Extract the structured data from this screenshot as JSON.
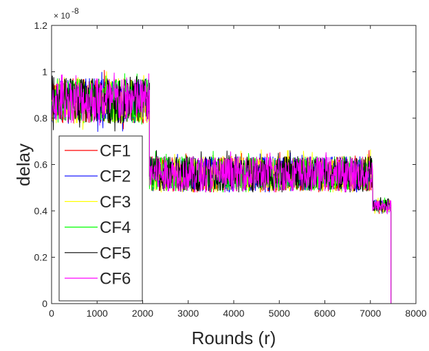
{
  "chart_data": {
    "type": "line",
    "title": "",
    "xlabel": "Rounds (r)",
    "ylabel": "delay",
    "xlim": [
      0,
      8000
    ],
    "ylim": [
      0,
      1.2
    ],
    "y_scale_label": "× 10",
    "y_scale_exponent": "-8",
    "x_ticks": [
      "0",
      "1000",
      "2000",
      "3000",
      "4000",
      "5000",
      "6000",
      "7000",
      "8000"
    ],
    "y_ticks": [
      "0",
      "0.2",
      "0.4",
      "0.6",
      "0.8",
      "1",
      "1.2"
    ],
    "grid": false,
    "legend_position": "bottom-left",
    "series": [
      {
        "name": "CF1",
        "color": "#ff0000"
      },
      {
        "name": "CF2",
        "color": "#0000ff"
      },
      {
        "name": "CF3",
        "color": "#ffff00"
      },
      {
        "name": "CF4",
        "color": "#00ff00"
      },
      {
        "name": "CF5",
        "color": "#000000"
      },
      {
        "name": "CF6",
        "color": "#ff00ff"
      }
    ],
    "segments": [
      {
        "x_start": 0,
        "x_end": 2150,
        "y_min": 0.76,
        "y_max": 1.03,
        "y_mean": 0.875
      },
      {
        "x_start": 2150,
        "x_end": 7050,
        "y_min": 0.48,
        "y_max": 0.69,
        "y_mean": 0.56
      },
      {
        "x_start": 7050,
        "x_end": 7450,
        "y_min": 0.38,
        "y_max": 0.46,
        "y_mean": 0.42
      },
      {
        "x_start": 7450,
        "x_end": 8000,
        "y_min": 0,
        "y_max": 0,
        "y_mean": 0
      }
    ]
  }
}
